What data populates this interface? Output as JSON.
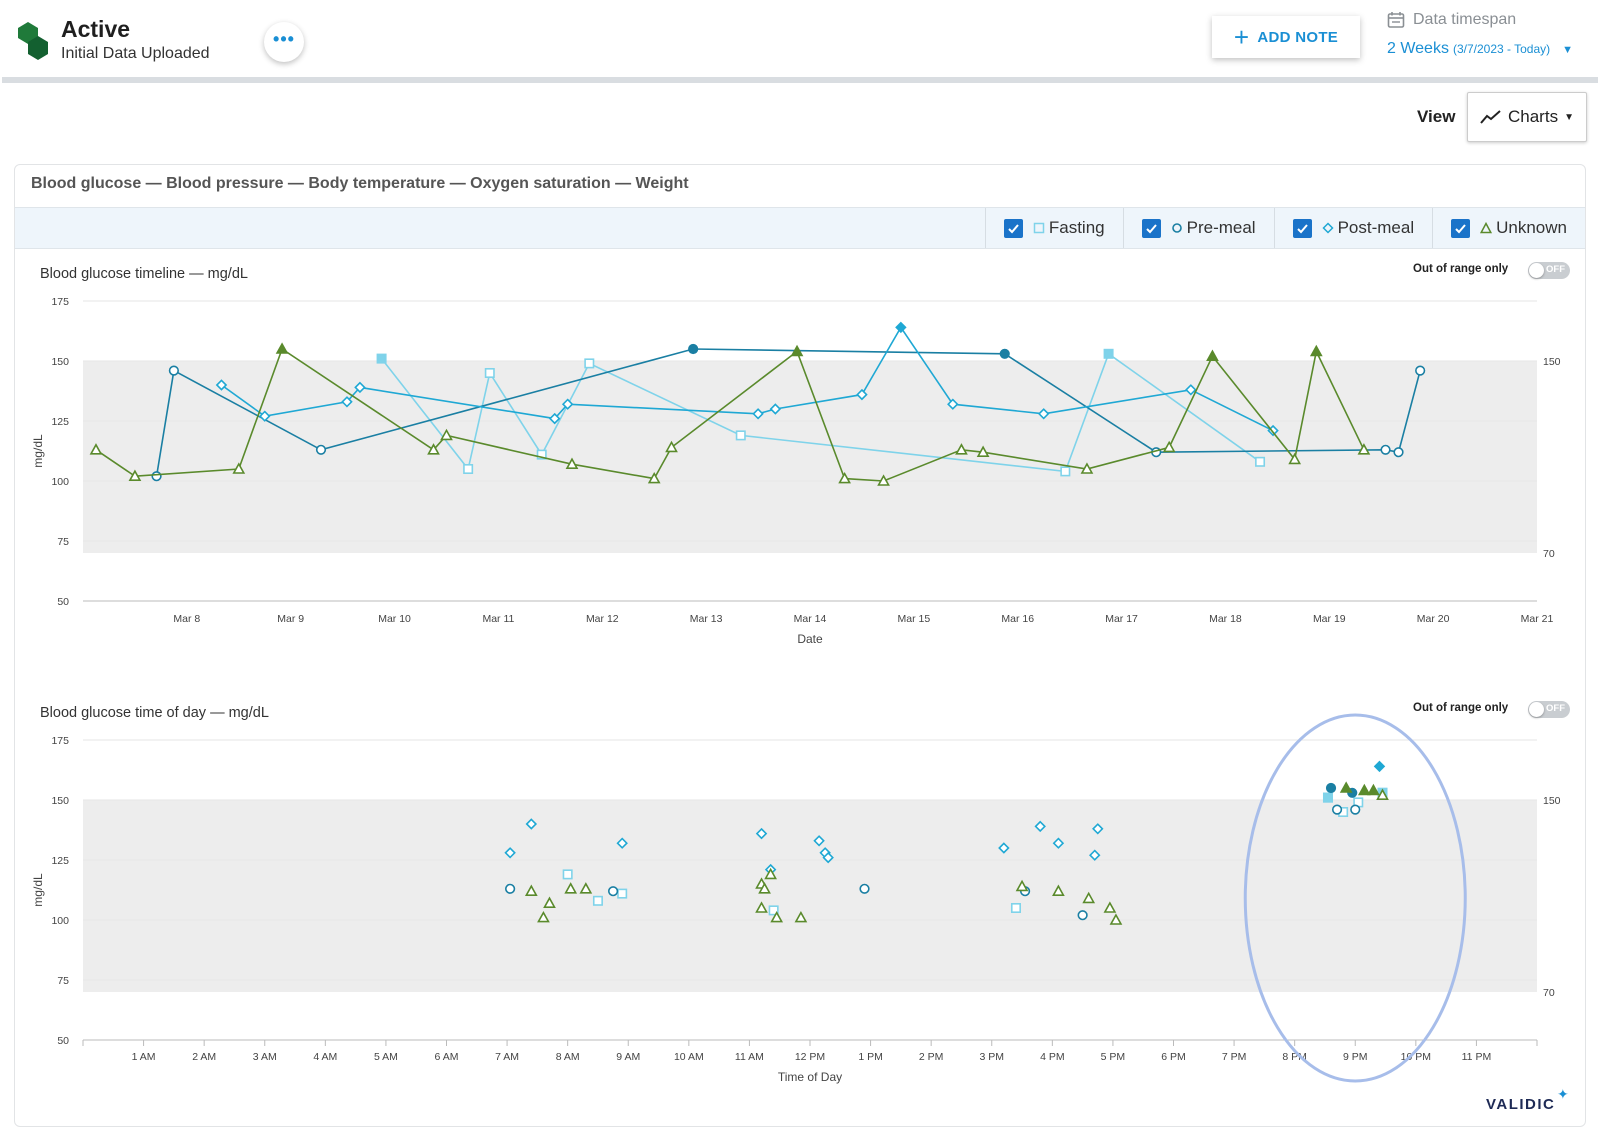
{
  "header": {
    "status_title": "Active",
    "status_subtitle": "Initial Data Uploaded",
    "more_label": "•••",
    "add_note_label": "ADD NOTE",
    "timespan_label": "Data timespan",
    "timespan_value": "2 Weeks",
    "timespan_range": "(3/7/2023 - Today)"
  },
  "view": {
    "label": "View",
    "selected": "Charts"
  },
  "panel": {
    "title": "Blood glucose — Blood pressure — Body temperature — Oxygen saturation — Weight",
    "legend": [
      {
        "label": "Fasting",
        "symbol": "□",
        "checked": true
      },
      {
        "label": "Pre-meal",
        "symbol": "o",
        "checked": true
      },
      {
        "label": "Post-meal",
        "symbol": "◇",
        "checked": true
      },
      {
        "label": "Unknown",
        "symbol": "△",
        "checked": true
      }
    ]
  },
  "colors": {
    "fasting": "#7fd3ea",
    "pre_meal": "#1a7fa3",
    "post_meal": "#1fa8d4",
    "unknown": "#5a8a2c",
    "accent": "#1a8fd4",
    "range_band": "#ededed",
    "highlight_ellipse": "#a7bdea"
  },
  "out_of_range_label": "Out of range only",
  "toggle_off_label": "OFF",
  "footer": {
    "brand": "VALIDIC"
  },
  "chart_data": [
    {
      "type": "line",
      "title": "Blood glucose timeline — mg/dL",
      "xlabel": "Date",
      "ylabel": "mg/dL",
      "ylim": [
        50,
        175
      ],
      "yticks": [
        50,
        75,
        100,
        125,
        150,
        175
      ],
      "normal_range": [
        70,
        150
      ],
      "right_labels": [
        "150",
        "70"
      ],
      "xlim": [
        "2023-03-07",
        "2023-03-21"
      ],
      "xticks": [
        "Mar 8",
        "Mar 9",
        "Mar 10",
        "Mar 11",
        "Mar 12",
        "Mar 13",
        "Mar 14",
        "Mar 15",
        "Mar 16",
        "Mar 17",
        "Mar 18",
        "Mar 19",
        "Mar 20",
        "Mar 21"
      ],
      "series": [
        {
          "name": "Fasting",
          "key": "fasting",
          "marker": "square",
          "points": [
            [
              "2023-03-09 21:00",
              151
            ],
            [
              "2023-03-10 17:00",
              105
            ],
            [
              "2023-03-10 22:00",
              145
            ],
            [
              "2023-03-11 10:00",
              111
            ],
            [
              "2023-03-11 21:00",
              149
            ],
            [
              "2023-03-13 08:00",
              119
            ],
            [
              "2023-03-16 11:00",
              104
            ],
            [
              "2023-03-16 21:00",
              153
            ],
            [
              "2023-03-18 08:00",
              108
            ]
          ]
        },
        {
          "name": "Pre-meal",
          "key": "pre_meal",
          "marker": "circle",
          "points": [
            [
              "2023-03-07 17:00",
              102
            ],
            [
              "2023-03-07 21:00",
              146
            ],
            [
              "2023-03-09 07:00",
              113
            ],
            [
              "2023-03-12 21:00",
              155
            ],
            [
              "2023-03-15 21:00",
              153
            ],
            [
              "2023-03-17 08:00",
              112
            ],
            [
              "2023-03-19 13:00",
              113
            ],
            [
              "2023-03-19 16:00",
              112
            ],
            [
              "2023-03-19 21:00",
              146
            ]
          ]
        },
        {
          "name": "Post-meal",
          "key": "post_meal",
          "marker": "diamond",
          "points": [
            [
              "2023-03-08 08:00",
              140
            ],
            [
              "2023-03-08 18:00",
              127
            ],
            [
              "2023-03-09 13:00",
              133
            ],
            [
              "2023-03-09 16:00",
              139
            ],
            [
              "2023-03-11 13:00",
              126
            ],
            [
              "2023-03-11 16:00",
              132
            ],
            [
              "2023-03-13 12:00",
              128
            ],
            [
              "2023-03-13 16:00",
              130
            ],
            [
              "2023-03-14 12:00",
              136
            ],
            [
              "2023-03-14 21:00",
              164
            ],
            [
              "2023-03-15 09:00",
              132
            ],
            [
              "2023-03-16 06:00",
              128
            ],
            [
              "2023-03-17 16:00",
              138
            ],
            [
              "2023-03-18 11:00",
              121
            ]
          ]
        },
        {
          "name": "Unknown",
          "key": "unknown",
          "marker": "triangle",
          "points": [
            [
              "2023-03-07 03:00",
              113
            ],
            [
              "2023-03-07 12:00",
              102
            ],
            [
              "2023-03-08 12:00",
              105
            ],
            [
              "2023-03-08 22:00",
              155
            ],
            [
              "2023-03-10 09:00",
              113
            ],
            [
              "2023-03-10 12:00",
              119
            ],
            [
              "2023-03-11 17:00",
              107
            ],
            [
              "2023-03-12 12:00",
              101
            ],
            [
              "2023-03-12 16:00",
              114
            ],
            [
              "2023-03-13 21:00",
              154
            ],
            [
              "2023-03-14 08:00",
              101
            ],
            [
              "2023-03-14 17:00",
              100
            ],
            [
              "2023-03-15 11:00",
              113
            ],
            [
              "2023-03-15 16:00",
              112
            ],
            [
              "2023-03-16 16:00",
              105
            ],
            [
              "2023-03-17 11:00",
              114
            ],
            [
              "2023-03-17 21:00",
              152
            ],
            [
              "2023-03-18 16:00",
              109
            ],
            [
              "2023-03-18 21:00",
              154
            ],
            [
              "2023-03-19 08:00",
              113
            ]
          ]
        }
      ]
    },
    {
      "type": "scatter",
      "title": "Blood glucose time of day — mg/dL",
      "xlabel": "Time of Day",
      "ylabel": "mg/dL",
      "ylim": [
        50,
        175
      ],
      "yticks": [
        50,
        75,
        100,
        125,
        150,
        175
      ],
      "normal_range": [
        70,
        150
      ],
      "right_labels": [
        "150",
        "70"
      ],
      "xlim": [
        0,
        24
      ],
      "xticks": [
        "1 AM",
        "2 AM",
        "3 AM",
        "4 AM",
        "5 AM",
        "6 AM",
        "7 AM",
        "8 AM",
        "9 AM",
        "10 AM",
        "11 AM",
        "12 PM",
        "1 PM",
        "2 PM",
        "3 PM",
        "4 PM",
        "5 PM",
        "6 PM",
        "7 PM",
        "8 PM",
        "9 PM",
        "10 PM",
        "11 PM"
      ],
      "annotation": "highlighted evening cluster (~8:30–9:30 PM)",
      "series": [
        {
          "name": "Fasting",
          "key": "fasting",
          "marker": "square",
          "points": [
            [
              8.0,
              119
            ],
            [
              8.5,
              108
            ],
            [
              8.9,
              111
            ],
            [
              11.4,
              104
            ],
            [
              15.4,
              105
            ],
            [
              20.55,
              151
            ],
            [
              20.8,
              145
            ],
            [
              21.05,
              149
            ],
            [
              21.45,
              153
            ]
          ],
          "filled_points": [
            [
              20.55,
              151
            ],
            [
              21.45,
              153
            ]
          ]
        },
        {
          "name": "Pre-meal",
          "key": "pre_meal",
          "marker": "circle",
          "points": [
            [
              7.05,
              113
            ],
            [
              8.75,
              112
            ],
            [
              12.9,
              113
            ],
            [
              15.55,
              112
            ],
            [
              16.5,
              102
            ],
            [
              20.7,
              146
            ],
            [
              21.0,
              146
            ]
          ],
          "filled_points": [
            [
              20.6,
              155
            ],
            [
              20.95,
              153
            ]
          ]
        },
        {
          "name": "Post-meal",
          "key": "post_meal",
          "marker": "diamond",
          "points": [
            [
              7.05,
              128
            ],
            [
              7.4,
              140
            ],
            [
              8.9,
              132
            ],
            [
              11.2,
              136
            ],
            [
              11.35,
              121
            ],
            [
              12.15,
              133
            ],
            [
              12.25,
              128
            ],
            [
              12.3,
              126
            ],
            [
              15.2,
              130
            ],
            [
              15.8,
              139
            ],
            [
              16.1,
              132
            ],
            [
              16.7,
              127
            ],
            [
              16.75,
              138
            ]
          ],
          "filled_points": [
            [
              21.4,
              164
            ]
          ]
        },
        {
          "name": "Unknown",
          "key": "unknown",
          "marker": "triangle",
          "points": [
            [
              7.4,
              112
            ],
            [
              7.6,
              101
            ],
            [
              7.7,
              107
            ],
            [
              8.05,
              113
            ],
            [
              8.3,
              113
            ],
            [
              11.2,
              115
            ],
            [
              11.25,
              113
            ],
            [
              11.2,
              105
            ],
            [
              11.35,
              119
            ],
            [
              11.45,
              101
            ],
            [
              11.85,
              101
            ],
            [
              15.5,
              114
            ],
            [
              16.1,
              112
            ],
            [
              16.6,
              109
            ],
            [
              16.95,
              105
            ],
            [
              17.05,
              100
            ],
            [
              21.45,
              152
            ]
          ],
          "filled_points": [
            [
              20.85,
              155
            ],
            [
              21.15,
              154
            ],
            [
              21.3,
              154
            ]
          ]
        }
      ]
    }
  ]
}
